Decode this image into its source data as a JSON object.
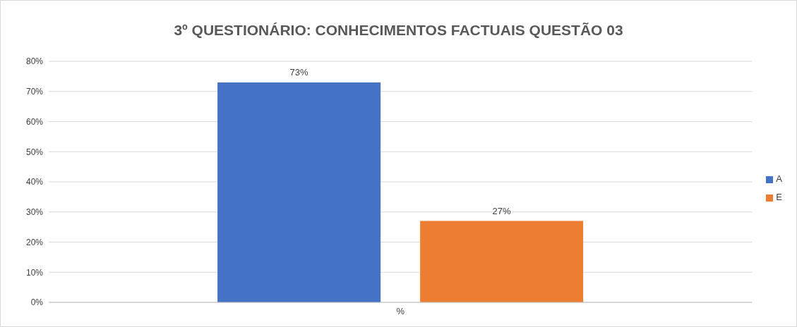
{
  "chart_data": {
    "type": "bar",
    "title": "3º QUESTIONÁRIO: CONHECIMENTOS FACTUAIS QUESTÃO 03",
    "categories": [
      "%"
    ],
    "series": [
      {
        "name": "A",
        "color": "#4472c4",
        "values": [
          73
        ],
        "value_labels": [
          "73%"
        ]
      },
      {
        "name": "E",
        "color": "#ed7d31",
        "values": [
          27
        ],
        "value_labels": [
          "27%"
        ]
      }
    ],
    "ylim": [
      0,
      80
    ],
    "yticks": [
      {
        "value": 0,
        "label": "0%"
      },
      {
        "value": 10,
        "label": "10%"
      },
      {
        "value": 20,
        "label": "20%"
      },
      {
        "value": 30,
        "label": "30%"
      },
      {
        "value": 40,
        "label": "40%"
      },
      {
        "value": 50,
        "label": "50%"
      },
      {
        "value": 60,
        "label": "60%"
      },
      {
        "value": 70,
        "label": "70%"
      },
      {
        "value": 80,
        "label": "80%"
      }
    ],
    "grid": "y",
    "legend": "right"
  }
}
